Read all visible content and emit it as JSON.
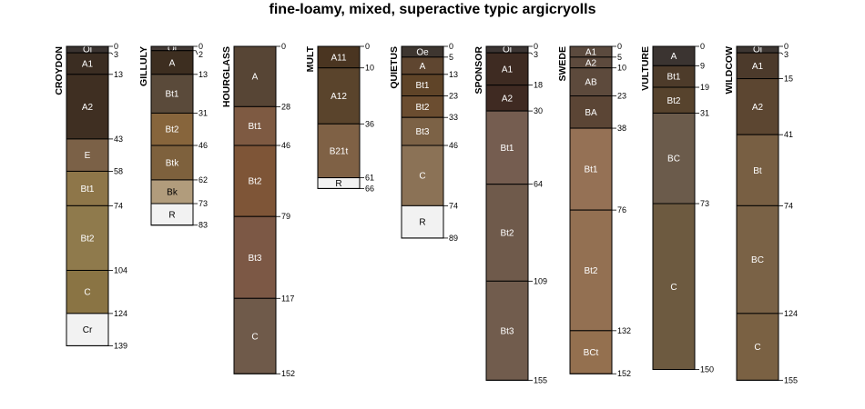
{
  "title": "fine-loamy, mixed, superactive typic argicryolls",
  "chart_data": {
    "type": "soil-profile-sketch",
    "title": "fine-loamy, mixed, superactive typic argicryolls",
    "depth_units": "cm",
    "profiles": [
      {
        "name": "CROYDON",
        "horizons": [
          {
            "name": "Oi",
            "top": 0,
            "bottom": 3,
            "color": "#3a3330"
          },
          {
            "name": "A1",
            "top": 3,
            "bottom": 13,
            "color": "#3b2d22"
          },
          {
            "name": "A2",
            "top": 13,
            "bottom": 43,
            "color": "#3f2f22"
          },
          {
            "name": "E",
            "top": 43,
            "bottom": 58,
            "color": "#7b6147"
          },
          {
            "name": "Bt1",
            "top": 58,
            "bottom": 74,
            "color": "#8e7649"
          },
          {
            "name": "Bt2",
            "top": 74,
            "bottom": 104,
            "color": "#8f7a4c"
          },
          {
            "name": "C",
            "top": 104,
            "bottom": 124,
            "color": "#8a7444"
          },
          {
            "name": "Cr",
            "top": 124,
            "bottom": 139,
            "color": "#f2f2f2"
          }
        ]
      },
      {
        "name": "GILLULY",
        "horizons": [
          {
            "name": "Oi",
            "top": 0,
            "bottom": 2,
            "color": "#433a35"
          },
          {
            "name": "A",
            "top": 2,
            "bottom": 13,
            "color": "#3d2e20"
          },
          {
            "name": "Bt1",
            "top": 13,
            "bottom": 31,
            "color": "#5a4a3a"
          },
          {
            "name": "Bt2",
            "top": 31,
            "bottom": 46,
            "color": "#87653c"
          },
          {
            "name": "Btk",
            "top": 46,
            "bottom": 62,
            "color": "#7e613d"
          },
          {
            "name": "Bk",
            "top": 62,
            "bottom": 73,
            "color": "#b19c7c"
          },
          {
            "name": "R",
            "top": 73,
            "bottom": 83,
            "color": "#f2f2f2"
          }
        ]
      },
      {
        "name": "HOURGLASS",
        "horizons": [
          {
            "name": "A",
            "top": 0,
            "bottom": 28,
            "color": "#574535"
          },
          {
            "name": "Bt1",
            "top": 28,
            "bottom": 46,
            "color": "#7e5a42"
          },
          {
            "name": "Bt2",
            "top": 46,
            "bottom": 79,
            "color": "#7e5537"
          },
          {
            "name": "Bt3",
            "top": 79,
            "bottom": 117,
            "color": "#7c5845"
          },
          {
            "name": "C",
            "top": 117,
            "bottom": 152,
            "color": "#6f5a4a"
          }
        ]
      },
      {
        "name": "MULT",
        "horizons": [
          {
            "name": "A11",
            "top": 0,
            "bottom": 10,
            "color": "#4a3521"
          },
          {
            "name": "A12",
            "top": 10,
            "bottom": 36,
            "color": "#5a442c"
          },
          {
            "name": "B21t",
            "top": 36,
            "bottom": 61,
            "color": "#7f6145"
          },
          {
            "name": "R",
            "top": 61,
            "bottom": 66,
            "color": "#f2f2f2"
          }
        ]
      },
      {
        "name": "QUIETUS",
        "horizons": [
          {
            "name": "Oe",
            "top": 0,
            "bottom": 5,
            "color": "#3e3630"
          },
          {
            "name": "A",
            "top": 5,
            "bottom": 13,
            "color": "#5f4630"
          },
          {
            "name": "Bt1",
            "top": 13,
            "bottom": 23,
            "color": "#5f4428"
          },
          {
            "name": "Bt2",
            "top": 23,
            "bottom": 33,
            "color": "#6b4d30"
          },
          {
            "name": "Bt3",
            "top": 33,
            "bottom": 46,
            "color": "#7c6246"
          },
          {
            "name": "C",
            "top": 46,
            "bottom": 74,
            "color": "#8b7256"
          },
          {
            "name": "R",
            "top": 74,
            "bottom": 89,
            "color": "#f2f2f2"
          }
        ]
      },
      {
        "name": "SPONSOR",
        "horizons": [
          {
            "name": "Oi",
            "top": 0,
            "bottom": 3,
            "color": "#3c3533"
          },
          {
            "name": "A1",
            "top": 3,
            "bottom": 18,
            "color": "#3e2b22"
          },
          {
            "name": "A2",
            "top": 18,
            "bottom": 30,
            "color": "#3f2a22"
          },
          {
            "name": "Bt1",
            "top": 30,
            "bottom": 64,
            "color": "#755d50"
          },
          {
            "name": "Bt2",
            "top": 64,
            "bottom": 109,
            "color": "#6f5a4b"
          },
          {
            "name": "Bt3",
            "top": 109,
            "bottom": 155,
            "color": "#715c4d"
          }
        ]
      },
      {
        "name": "SWEDE",
        "horizons": [
          {
            "name": "A1",
            "top": 0,
            "bottom": 5,
            "color": "#5b4a3e"
          },
          {
            "name": "A2",
            "top": 5,
            "bottom": 10,
            "color": "#5d4a3d"
          },
          {
            "name": "AB",
            "top": 10,
            "bottom": 23,
            "color": "#5d4a3c"
          },
          {
            "name": "BA",
            "top": 23,
            "bottom": 38,
            "color": "#5b4535"
          },
          {
            "name": "Bt1",
            "top": 38,
            "bottom": 76,
            "color": "#957155"
          },
          {
            "name": "Bt2",
            "top": 76,
            "bottom": 132,
            "color": "#937052"
          },
          {
            "name": "BCt",
            "top": 132,
            "bottom": 152,
            "color": "#94704f"
          }
        ]
      },
      {
        "name": "VULTURE",
        "horizons": [
          {
            "name": "A",
            "top": 0,
            "bottom": 9,
            "color": "#3b3431"
          },
          {
            "name": "Bt1",
            "top": 9,
            "bottom": 19,
            "color": "#4d3b2a"
          },
          {
            "name": "Bt2",
            "top": 19,
            "bottom": 31,
            "color": "#57432d"
          },
          {
            "name": "BC",
            "top": 31,
            "bottom": 73,
            "color": "#6b5b4b"
          },
          {
            "name": "C",
            "top": 73,
            "bottom": 150,
            "color": "#6d5a40"
          }
        ]
      },
      {
        "name": "WILDCOW",
        "horizons": [
          {
            "name": "Oi",
            "top": 0,
            "bottom": 3,
            "color": "#3d3632"
          },
          {
            "name": "A1",
            "top": 3,
            "bottom": 15,
            "color": "#4c3a2b"
          },
          {
            "name": "A2",
            "top": 15,
            "bottom": 41,
            "color": "#5c4631"
          },
          {
            "name": "Bt",
            "top": 41,
            "bottom": 74,
            "color": "#785f43"
          },
          {
            "name": "BC",
            "top": 74,
            "bottom": 124,
            "color": "#7a6246"
          },
          {
            "name": "C",
            "top": 124,
            "bottom": 155,
            "color": "#7a6143"
          }
        ]
      }
    ]
  }
}
